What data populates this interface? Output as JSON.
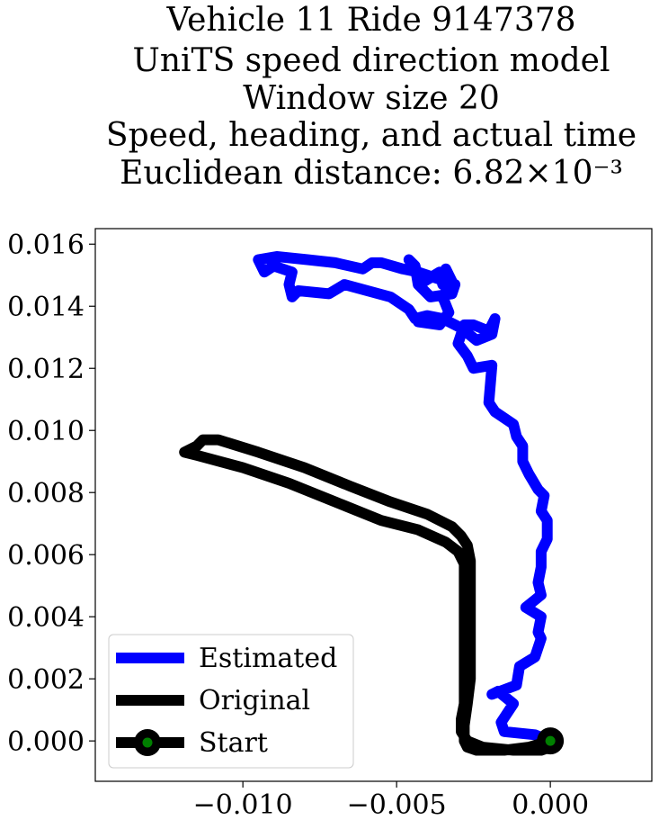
{
  "chart_data": {
    "type": "line",
    "title": [
      "Vehicle 11 Ride 9147378",
      "UniTS speed direction model",
      "Window size 20",
      "Speed, heading, and actual time",
      "Euclidean distance: 6.82×10⁻³"
    ],
    "xlabel": "",
    "ylabel": "",
    "xlim": [
      -0.0148,
      0.0033
    ],
    "ylim": [
      -0.0013,
      0.0165
    ],
    "xticks": [
      -0.01,
      -0.005,
      0.0
    ],
    "xtick_labels": [
      "−0.010",
      "−0.005",
      "0.000"
    ],
    "yticks": [
      0.0,
      0.002,
      0.004,
      0.006,
      0.008,
      0.01,
      0.012,
      0.014,
      0.016
    ],
    "ytick_labels": [
      "0.000",
      "0.002",
      "0.004",
      "0.006",
      "0.008",
      "0.010",
      "0.012",
      "0.014",
      "0.016"
    ],
    "grid": false,
    "legend_position": "lower-left",
    "series": [
      {
        "name": "Estimated",
        "color": "#0000ff",
        "points": [
          [
            0.0,
            0.0
          ],
          [
            -0.0005,
            0.0002
          ],
          [
            -0.0015,
            0.0003
          ],
          [
            -0.0016,
            0.0006
          ],
          [
            -0.0012,
            0.0012
          ],
          [
            -0.0017,
            0.0016
          ],
          [
            -0.0019,
            0.0015
          ],
          [
            -0.0011,
            0.0018
          ],
          [
            -0.001,
            0.0024
          ],
          [
            -0.0005,
            0.0027
          ],
          [
            -0.0003,
            0.0033
          ],
          [
            -0.0004,
            0.0035
          ],
          [
            -0.0003,
            0.004
          ],
          [
            -0.0008,
            0.0043
          ],
          [
            -0.0003,
            0.0047
          ],
          [
            -0.0004,
            0.0051
          ],
          [
            -0.0003,
            0.0056
          ],
          [
            -0.0003,
            0.0061
          ],
          [
            -0.0001,
            0.0065
          ],
          [
            -0.0001,
            0.0071
          ],
          [
            -0.0003,
            0.0074
          ],
          [
            -0.0002,
            0.0079
          ],
          [
            -0.0004,
            0.0081
          ],
          [
            -0.0007,
            0.0086
          ],
          [
            -0.0009,
            0.009
          ],
          [
            -0.0009,
            0.0095
          ],
          [
            -0.0011,
            0.0098
          ],
          [
            -0.0012,
            0.0102
          ],
          [
            -0.0018,
            0.0106
          ],
          [
            -0.002,
            0.0109
          ],
          [
            -0.0019,
            0.0121
          ],
          [
            -0.0025,
            0.012
          ],
          [
            -0.0027,
            0.0124
          ],
          [
            -0.003,
            0.0128
          ],
          [
            -0.0028,
            0.0134
          ],
          [
            -0.0025,
            0.0134
          ],
          [
            -0.002,
            0.0132
          ],
          [
            -0.0018,
            0.0136
          ],
          [
            -0.0019,
            0.0131
          ],
          [
            -0.0024,
            0.0129
          ],
          [
            -0.0029,
            0.0133
          ],
          [
            -0.0035,
            0.0136
          ],
          [
            -0.004,
            0.0137
          ],
          [
            -0.0044,
            0.0136
          ],
          [
            -0.0046,
            0.0139
          ],
          [
            -0.0052,
            0.0143
          ],
          [
            -0.0067,
            0.0147
          ],
          [
            -0.0072,
            0.0144
          ],
          [
            -0.0082,
            0.0145
          ],
          [
            -0.0084,
            0.0143
          ],
          [
            -0.0085,
            0.0147
          ],
          [
            -0.0084,
            0.0151
          ],
          [
            -0.009,
            0.0153
          ],
          [
            -0.0093,
            0.0151
          ],
          [
            -0.0095,
            0.0155
          ],
          [
            -0.0089,
            0.0156
          ],
          [
            -0.0079,
            0.0155
          ],
          [
            -0.007,
            0.0154
          ],
          [
            -0.0061,
            0.0152
          ],
          [
            -0.0058,
            0.0154
          ],
          [
            -0.0055,
            0.0154
          ],
          [
            -0.0048,
            0.0152
          ],
          [
            -0.0043,
            0.0151
          ],
          [
            -0.0034,
            0.0148
          ],
          [
            -0.0031,
            0.0147
          ],
          [
            -0.0032,
            0.0144
          ],
          [
            -0.0039,
            0.0143
          ],
          [
            -0.0043,
            0.0147
          ],
          [
            -0.0044,
            0.0153
          ],
          [
            -0.0046,
            0.0155
          ],
          [
            -0.0041,
            0.0148
          ],
          [
            -0.0036,
            0.0151
          ],
          [
            -0.0035,
            0.0147
          ],
          [
            -0.0034,
            0.0152
          ],
          [
            -0.0032,
            0.0148
          ],
          [
            -0.0035,
            0.0143
          ],
          [
            -0.0033,
            0.0138
          ],
          [
            -0.0036,
            0.0134
          ],
          [
            -0.0043,
            0.0135
          ]
        ]
      },
      {
        "name": "Original",
        "color": "#000000",
        "points": [
          [
            0.0,
            0.0
          ],
          [
            -0.0007,
            -0.0002
          ],
          [
            -0.0015,
            -0.0003
          ],
          [
            -0.0024,
            -0.0003
          ],
          [
            -0.0027,
            -0.0002
          ],
          [
            -0.0028,
            0.0
          ],
          [
            -0.0028,
            0.0005
          ],
          [
            -0.0027,
            0.0012
          ],
          [
            -0.0026,
            0.002
          ],
          [
            -0.0026,
            0.003
          ],
          [
            -0.0026,
            0.004
          ],
          [
            -0.0026,
            0.005
          ],
          [
            -0.0026,
            0.0058
          ],
          [
            -0.0027,
            0.0063
          ],
          [
            -0.0029,
            0.0066
          ],
          [
            -0.0032,
            0.0069
          ],
          [
            -0.004,
            0.0073
          ],
          [
            -0.0052,
            0.0077
          ],
          [
            -0.0065,
            0.0082
          ],
          [
            -0.008,
            0.0088
          ],
          [
            -0.0095,
            0.0093
          ],
          [
            -0.0108,
            0.0097
          ],
          [
            -0.0113,
            0.0097
          ],
          [
            -0.0115,
            0.0095
          ],
          [
            -0.0119,
            0.0093
          ],
          [
            -0.0115,
            0.0092
          ],
          [
            -0.01,
            0.0088
          ],
          [
            -0.0085,
            0.0083
          ],
          [
            -0.007,
            0.0077
          ],
          [
            -0.0055,
            0.0071
          ],
          [
            -0.0043,
            0.0068
          ],
          [
            -0.0034,
            0.0064
          ],
          [
            -0.003,
            0.0061
          ],
          [
            -0.0028,
            0.0057
          ],
          [
            -0.0028,
            0.005
          ],
          [
            -0.0028,
            0.004
          ],
          [
            -0.0028,
            0.003
          ],
          [
            -0.0028,
            0.002
          ],
          [
            -0.0028,
            0.0012
          ],
          [
            -0.0029,
            0.0007
          ],
          [
            -0.0029,
            0.0003
          ],
          [
            -0.0027,
            0.0
          ],
          [
            -0.0022,
            -0.0002
          ],
          [
            -0.0012,
            -0.0003
          ],
          [
            -0.0003,
            -0.0003
          ],
          [
            0.0,
            -0.0002
          ],
          [
            0.0,
            0.0
          ]
        ]
      }
    ],
    "start": {
      "name": "Start",
      "x": 0.0,
      "y": 0.0,
      "line_color": "#000000",
      "marker_color": "#008000"
    }
  },
  "legend": {
    "items": [
      {
        "label": "Estimated",
        "color": "#0000ff",
        "marker": false
      },
      {
        "label": "Original",
        "color": "#000000",
        "marker": false
      },
      {
        "label": "Start",
        "color": "#000000",
        "marker": true,
        "marker_color": "#008000"
      }
    ]
  }
}
